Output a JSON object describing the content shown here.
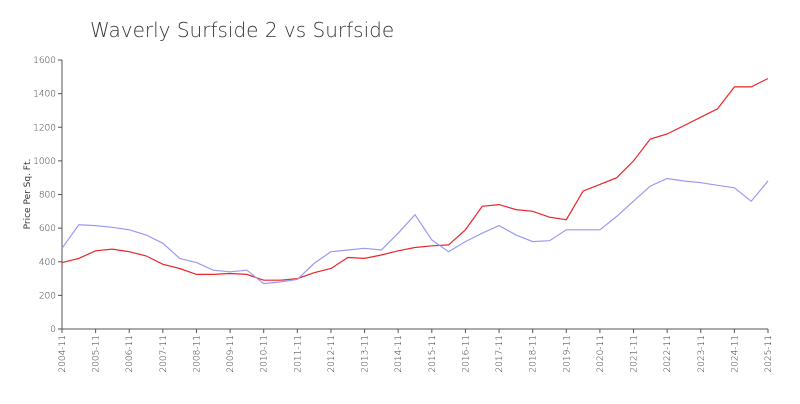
{
  "chart_data": {
    "type": "line",
    "title": "Waverly Surfside 2 vs Surfside",
    "ylabel": "Price Per Sq. Ft.",
    "x": [
      "2004-11",
      "2005-05",
      "2005-11",
      "2006-05",
      "2006-11",
      "2007-05",
      "2007-11",
      "2008-05",
      "2008-11",
      "2009-05",
      "2009-11",
      "2010-05",
      "2010-11",
      "2011-05",
      "2011-11",
      "2012-05",
      "2012-11",
      "2013-05",
      "2013-11",
      "2014-05",
      "2014-11",
      "2015-05",
      "2015-11",
      "2016-05",
      "2016-11",
      "2017-05",
      "2017-11",
      "2018-05",
      "2018-11",
      "2019-05",
      "2019-11",
      "2020-05",
      "2020-11",
      "2021-05",
      "2021-11",
      "2022-05",
      "2022-11",
      "2023-05",
      "2023-11",
      "2024-05",
      "2024-11",
      "2025-05",
      "2025-11"
    ],
    "series": [
      {
        "color": "#e8252a",
        "values": [
          395,
          420,
          465,
          475,
          460,
          435,
          385,
          360,
          325,
          325,
          330,
          325,
          290,
          290,
          300,
          335,
          360,
          425,
          420,
          440,
          465,
          485,
          495,
          500,
          590,
          730,
          740,
          710,
          700,
          665,
          650,
          820,
          860,
          900,
          1000,
          1130,
          1160,
          1210,
          1260,
          1310,
          1440,
          1440,
          1490
        ]
      },
      {
        "color": "#9a9af0",
        "values": [
          480,
          620,
          615,
          605,
          590,
          560,
          510,
          420,
          395,
          350,
          340,
          350,
          270,
          280,
          295,
          390,
          460,
          470,
          480,
          470,
          570,
          680,
          530,
          460,
          520,
          570,
          615,
          560,
          520,
          525,
          590,
          590,
          590,
          670,
          760,
          850,
          895,
          880,
          870,
          855,
          840,
          760,
          880
        ]
      }
    ],
    "xticks": [
      "2004-11",
      "2005-11",
      "2006-11",
      "2007-11",
      "2008-11",
      "2009-11",
      "2010-11",
      "2011-11",
      "2012-11",
      "2013-11",
      "2014-11",
      "2015-11",
      "2016-11",
      "2017-11",
      "2018-11",
      "2019-11",
      "2020-11",
      "2021-11",
      "2022-11",
      "2023-11",
      "2024-11",
      "2025-11"
    ],
    "ylim": [
      0,
      1600
    ],
    "yticks": [
      0,
      200,
      400,
      600,
      800,
      1000,
      1200,
      1400,
      1600
    ],
    "grid": false
  }
}
